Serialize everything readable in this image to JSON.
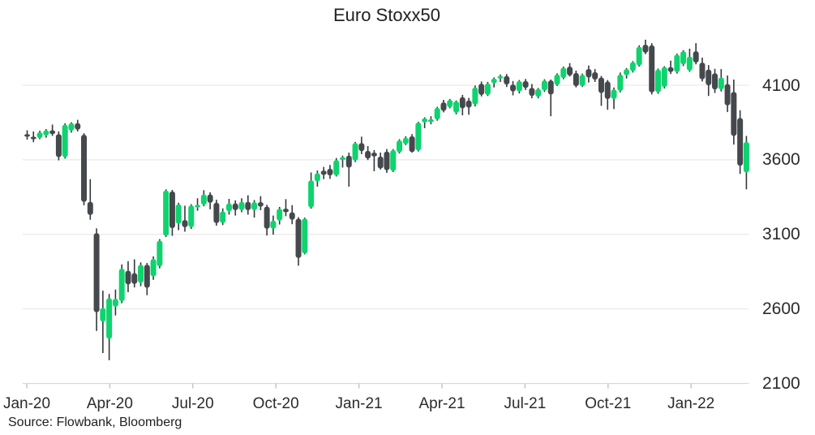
{
  "title": "Euro Stoxx50",
  "source": "Source: Flowbank, Bloomberg",
  "colors": {
    "up": "#0fd36e",
    "down": "#45484d",
    "wick": "#34373c",
    "grid": "#e9e9e9",
    "axis_line": "#d9d9d9",
    "tick": "#c6c6c6",
    "title_text": "#202124",
    "axis_text": "#2a2b2e",
    "background": "#ffffff"
  },
  "y_axis": {
    "labels": [
      "4100",
      "3600",
      "3100",
      "2600",
      "2100"
    ],
    "values": [
      4100,
      3600,
      3100,
      2600,
      2100
    ]
  },
  "x_axis": {
    "labels": [
      "Jan-20",
      "Apr-20",
      "Jul-20",
      "Oct-20",
      "Jan-21",
      "Apr-21",
      "Jul-21",
      "Oct-21",
      "Jan-22"
    ]
  },
  "chart_data": {
    "type": "candlestick",
    "title": "Euro Stoxx50",
    "series_name": "Euro Stoxx50",
    "frequency": "weekly",
    "n_points": 115,
    "x_range_labels": [
      "Jan-20",
      "Mar-22"
    ],
    "x_tick_labels": [
      "Jan-20",
      "Apr-20",
      "Jul-20",
      "Oct-20",
      "Jan-21",
      "Apr-21",
      "Jul-21",
      "Oct-21",
      "Jan-22"
    ],
    "y_ticks": [
      2100,
      2600,
      3100,
      3600,
      4100
    ],
    "ylim": [
      2100,
      4450
    ],
    "grid": "horizontal",
    "legend": "none",
    "open": [
      3772,
      3755,
      3745,
      3762,
      3798,
      3772,
      3618,
      3795,
      3846,
      3768,
      3318,
      3108,
      2515,
      2400,
      2615,
      2652,
      2856,
      2840,
      2775,
      2896,
      2818,
      2885,
      3090,
      3388,
      3172,
      3196,
      3148,
      3294,
      3298,
      3368,
      3312,
      3176,
      3254,
      3308,
      3262,
      3318,
      3262,
      3316,
      3286,
      3138,
      3192,
      3272,
      3248,
      3205,
      2972,
      3280,
      3455,
      3528,
      3540,
      3495,
      3598,
      3628,
      3595,
      3712,
      3660,
      3648,
      3622,
      3655,
      3525,
      3650,
      3705,
      3758,
      3662,
      3850,
      3852,
      3870,
      3985,
      3952,
      3915,
      4020,
      3998,
      3970,
      4110,
      4035,
      4112,
      4145,
      4162,
      4105,
      4058,
      4128,
      4082,
      4022,
      4065,
      4132,
      4102,
      4148,
      4225,
      4182,
      4094,
      4209,
      4188,
      4152,
      4125,
      4008,
      4062,
      4166,
      4195,
      4232,
      4372,
      4368,
      4052,
      4088,
      4222,
      4188,
      4240,
      4198,
      4328,
      4252,
      4205,
      4180,
      4072,
      4108,
      4055,
      3880,
      3515
    ],
    "high": [
      3798,
      3790,
      3795,
      3806,
      3836,
      3790,
      3845,
      3852,
      3868,
      3778,
      3470,
      3140,
      2722,
      2700,
      2730,
      2898,
      2920,
      2932,
      2912,
      2908,
      2952,
      3068,
      3402,
      3398,
      3312,
      3292,
      3302,
      3342,
      3396,
      3382,
      3332,
      3274,
      3338,
      3328,
      3342,
      3362,
      3330,
      3356,
      3298,
      3226,
      3284,
      3336,
      3296,
      3215,
      3212,
      3515,
      3528,
      3552,
      3565,
      3612,
      3628,
      3648,
      3720,
      3755,
      3692,
      3665,
      3648,
      3672,
      3672,
      3738,
      3758,
      3772,
      3855,
      3885,
      3892,
      3955,
      4002,
      4008,
      3998,
      4035,
      4015,
      4098,
      4125,
      4122,
      4152,
      4172,
      4175,
      4128,
      4135,
      4142,
      4108,
      4082,
      4140,
      4138,
      4180,
      4225,
      4248,
      4198,
      4178,
      4232,
      4208,
      4162,
      4135,
      4085,
      4185,
      4215,
      4262,
      4368,
      4405,
      4382,
      4212,
      4228,
      4265,
      4312,
      4335,
      4345,
      4382,
      4285,
      4235,
      4210,
      4208,
      4165,
      4138,
      3932,
      3760
    ],
    "low": [
      3735,
      3718,
      3738,
      3748,
      3760,
      3596,
      3608,
      3782,
      3790,
      3295,
      3198,
      2452,
      2304,
      2256,
      2556,
      2638,
      2712,
      2744,
      2752,
      2692,
      2795,
      2872,
      3082,
      3090,
      3128,
      3118,
      3136,
      3258,
      3288,
      3268,
      3158,
      3162,
      3232,
      3226,
      3248,
      3232,
      3212,
      3262,
      3092,
      3098,
      3166,
      3222,
      3168,
      2890,
      2966,
      3272,
      3420,
      3470,
      3472,
      3488,
      3548,
      3420,
      3585,
      3638,
      3598,
      3523,
      3535,
      3512,
      3518,
      3642,
      3698,
      3648,
      3655,
      3812,
      3838,
      3862,
      3918,
      3945,
      3905,
      3898,
      3902,
      3958,
      4025,
      4028,
      4085,
      4122,
      4088,
      4032,
      4045,
      4068,
      4012,
      4012,
      4055,
      3892,
      4095,
      4140,
      4158,
      4085,
      4088,
      4118,
      4122,
      3962,
      3936,
      3940,
      4052,
      4145,
      4185,
      4225,
      4308,
      4038,
      4042,
      4078,
      4175,
      4178,
      4228,
      4190,
      4240,
      4125,
      4028,
      4048,
      4058,
      3920,
      3702,
      3505,
      3402
    ],
    "close": [
      3755,
      3745,
      3785,
      3798,
      3772,
      3618,
      3836,
      3846,
      3802,
      3318,
      3230,
      2578,
      2606,
      2672,
      2668,
      2870,
      2764,
      2768,
      2896,
      2742,
      2935,
      3058,
      3394,
      3142,
      3302,
      3148,
      3294,
      3298,
      3368,
      3312,
      3176,
      3254,
      3308,
      3262,
      3318,
      3262,
      3316,
      3286,
      3138,
      3192,
      3272,
      3248,
      3198,
      2942,
      3206,
      3462,
      3510,
      3498,
      3495,
      3598,
      3618,
      3548,
      3712,
      3658,
      3608,
      3622,
      3542,
      3530,
      3665,
      3730,
      3748,
      3652,
      3850,
      3878,
      3872,
      3948,
      3928,
      4002,
      3992,
      3945,
      3950,
      4085,
      4035,
      4112,
      4145,
      4162,
      4105,
      4058,
      4128,
      4082,
      4028,
      4075,
      4132,
      4038,
      4172,
      4218,
      4165,
      4094,
      4170,
      4152,
      4138,
      4048,
      4008,
      4072,
      4172,
      4208,
      4255,
      4358,
      4318,
      4052,
      4205,
      4222,
      4188,
      4305,
      4328,
      4292,
      4252,
      4140,
      4100,
      4072,
      4152,
      3965,
      3760,
      3560,
      3720
    ]
  }
}
